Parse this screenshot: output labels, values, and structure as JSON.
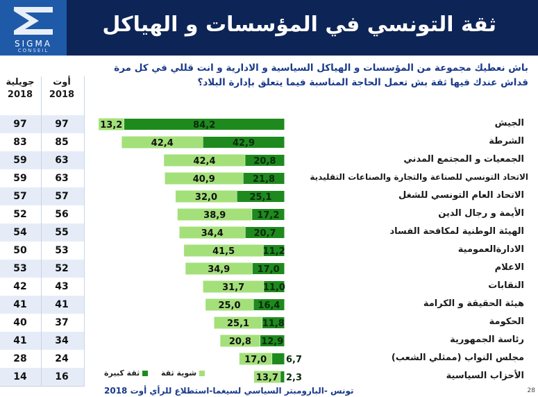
{
  "header": {
    "title": "ثقة التونسي في المؤسسات و الهياكل",
    "logo_text": "SIGMA",
    "logo_sub": "CONSEIL"
  },
  "question": "باش نعطيك مجموعة من المؤسسات و الهياكل السياسية و الادارية و انت قللي في كل مرة قداش عندك فيها ثقة بش تعمل الحاجة المناسبة فيما يتعلق بإدارة البلاد؟",
  "table": {
    "col1_header": [
      "جويلية",
      "2018"
    ],
    "col2_header": [
      "أوت",
      "2018"
    ]
  },
  "colors": {
    "big_trust": "#1e8a1e",
    "some_trust": "#a4e07a",
    "header_bg": "#0d2456",
    "row_alt": "#e6ecf7"
  },
  "chart_data": {
    "type": "bar",
    "stacked": true,
    "orientation": "horizontal",
    "categories": [
      "الجيش",
      "الشرطة",
      "الجمعيات و المجتمع المدني",
      "الاتحاد التونسي للصناعة والتجارة والصناعات التقليدية",
      "الاتحاد العام التونسي للشغل",
      "الأيمة و رجال الدين",
      "الهيئة الوطنية لمكافحة الفساد",
      "الادارةالعمومية",
      "الاعلام",
      "النقابات",
      "هيئة الحقيقة و الكرامة",
      "الحكومة",
      "رئاسة الجمهورية",
      "مجلس النواب (ممثلي الشعب)",
      "الأحزاب السياسية"
    ],
    "series": [
      {
        "name": "ثقة كبيرة",
        "values": [
          84.2,
          42.9,
          20.8,
          21.8,
          25.1,
          17.2,
          20.7,
          11.2,
          17.0,
          11.0,
          16.4,
          11.8,
          12.9,
          6.7,
          2.3
        ],
        "labels": [
          "84,2",
          "42,9",
          "20,8",
          "21,8",
          "25,1",
          "17,2",
          "20,7",
          "11,2",
          "17,0",
          "11,0",
          "16,4",
          "11,8",
          "12,9",
          "6,7",
          "2,3"
        ]
      },
      {
        "name": "شوية ثقة",
        "values": [
          13.2,
          42.4,
          42.4,
          40.9,
          32.0,
          38.9,
          34.4,
          41.5,
          34.9,
          31.7,
          25.0,
          25.1,
          20.8,
          17.0,
          13.7
        ],
        "labels": [
          "13,2",
          "42,4",
          "42,4",
          "40,9",
          "32,0",
          "38,9",
          "34,4",
          "41,5",
          "34,9",
          "31,7",
          "25,0",
          "25,1",
          "20,8",
          "17,0",
          "13,7"
        ]
      }
    ],
    "table_rows": [
      [
        "97",
        "97"
      ],
      [
        "83",
        "85"
      ],
      [
        "59",
        "63"
      ],
      [
        "59",
        "63"
      ],
      [
        "57",
        "57"
      ],
      [
        "52",
        "56"
      ],
      [
        "54",
        "55"
      ],
      [
        "50",
        "53"
      ],
      [
        "53",
        "52"
      ],
      [
        "42",
        "43"
      ],
      [
        "41",
        "41"
      ],
      [
        "40",
        "37"
      ],
      [
        "41",
        "34"
      ],
      [
        "28",
        "24"
      ],
      [
        "14",
        "16"
      ]
    ],
    "xlim": [
      0,
      100
    ],
    "legend": "bottom"
  },
  "legend": {
    "big": "ثقة كبيرة",
    "some": "شوية ثقة"
  },
  "footer": "تونس -البارومبتر السياسي لسيغما-استطلاع للرأي أوت 2018",
  "page_number": "28"
}
